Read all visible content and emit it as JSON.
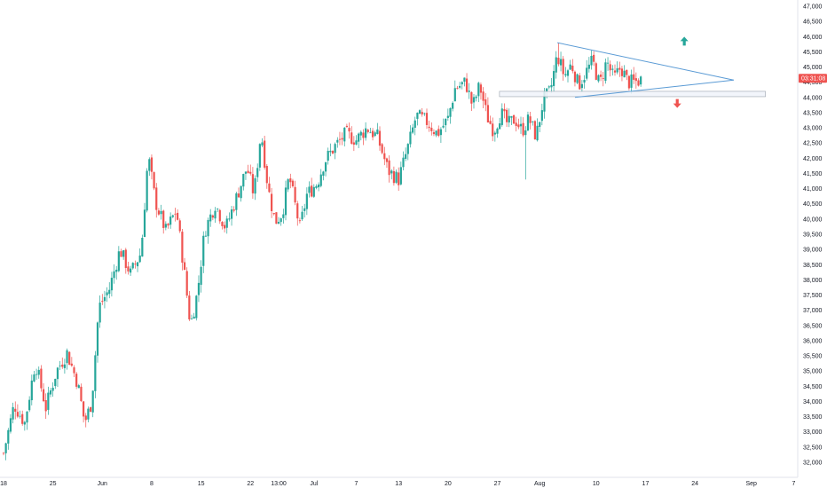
{
  "chart_data": {
    "type": "candlestick",
    "colors": {
      "up": "#26a69a",
      "down": "#ef5350",
      "pattern": "#5b9bd5",
      "zone_fill": "#f0f3fa",
      "zone_stroke": "#9aa1ac",
      "badge": "#ef5350",
      "up_arrow": "#26a69a",
      "down_arrow": "#ef5350"
    },
    "ylim": [
      31800,
      47100
    ],
    "y_ticks": [
      "47,000",
      "46,500",
      "46,000",
      "45,500",
      "45,000",
      "44,500",
      "44,000",
      "43,500",
      "43,000",
      "42,500",
      "42,000",
      "41,500",
      "41,000",
      "40,500",
      "40,000",
      "39,500",
      "39,000",
      "38,500",
      "38,000",
      "37,500",
      "37,000",
      "36,500",
      "36,000",
      "35,500",
      "35,000",
      "34,500",
      "34,000",
      "33,500",
      "33,000",
      "32,500",
      "32,000"
    ],
    "x_ticks": [
      {
        "label": "18",
        "day": 0
      },
      {
        "label": "25",
        "day": 7
      },
      {
        "label": "Jun",
        "day": 14
      },
      {
        "label": "8",
        "day": 21
      },
      {
        "label": "15",
        "day": 28
      },
      {
        "label": "22",
        "day": 35
      },
      {
        "label": "13:00",
        "day": 39
      },
      {
        "label": "Jul",
        "day": 44
      },
      {
        "label": "7",
        "day": 50
      },
      {
        "label": "13",
        "day": 56
      },
      {
        "label": "20",
        "day": 63
      },
      {
        "label": "27",
        "day": 70
      },
      {
        "label": "Aug",
        "day": 76
      },
      {
        "label": "10",
        "day": 84
      },
      {
        "label": "17",
        "day": 91
      },
      {
        "label": "24",
        "day": 98
      },
      {
        "label": "Sep",
        "day": 106
      },
      {
        "label": "7",
        "day": 112
      }
    ],
    "close_path": [
      [
        0,
        32300
      ],
      [
        1.5,
        33900
      ],
      [
        3,
        33300
      ],
      [
        4.5,
        35300
      ],
      [
        6,
        33800
      ],
      [
        7.5,
        35000
      ],
      [
        9,
        35600
      ],
      [
        10.5,
        34600
      ],
      [
        11.5,
        33300
      ],
      [
        12.5,
        34000
      ],
      [
        13.5,
        37100
      ],
      [
        15,
        37700
      ],
      [
        16.5,
        39000
      ],
      [
        18,
        38200
      ],
      [
        19.5,
        38900
      ],
      [
        20.5,
        42100
      ],
      [
        21.5,
        40600
      ],
      [
        23,
        39600
      ],
      [
        24.5,
        40300
      ],
      [
        25.5,
        38500
      ],
      [
        26.5,
        36500
      ],
      [
        27.5,
        37600
      ],
      [
        28.5,
        39600
      ],
      [
        30,
        40500
      ],
      [
        31.5,
        39700
      ],
      [
        33,
        40700
      ],
      [
        34.5,
        41700
      ],
      [
        35.5,
        40800
      ],
      [
        36.5,
        42900
      ],
      [
        37.5,
        41000
      ],
      [
        38.5,
        39900
      ],
      [
        39.5,
        40200
      ],
      [
        40.5,
        41400
      ],
      [
        42,
        39700
      ],
      [
        43,
        40800
      ],
      [
        44.5,
        41200
      ],
      [
        45.5,
        41900
      ],
      [
        47,
        42400
      ],
      [
        48.5,
        42800
      ],
      [
        50,
        42600
      ],
      [
        51.5,
        43000
      ],
      [
        53,
        42700
      ],
      [
        54.5,
        41600
      ],
      [
        56,
        41300
      ],
      [
        57.5,
        42500
      ],
      [
        58.5,
        43400
      ],
      [
        60,
        43200
      ],
      [
        61.5,
        42800
      ],
      [
        63,
        43300
      ],
      [
        64,
        44300
      ],
      [
        65.5,
        44500
      ],
      [
        66.5,
        43700
      ],
      [
        67.5,
        44400
      ],
      [
        68.5,
        43400
      ],
      [
        69.5,
        42900
      ],
      [
        70.5,
        43500
      ],
      [
        71.5,
        43100
      ],
      [
        72.5,
        43300
      ],
      [
        73.5,
        42900
      ],
      [
        74.5,
        43300
      ],
      [
        75.5,
        42700
      ],
      [
        76.5,
        43900
      ],
      [
        77.5,
        44200
      ],
      [
        78.5,
        45400
      ],
      [
        79.5,
        44700
      ],
      [
        80.5,
        45100
      ],
      [
        81.5,
        44400
      ],
      [
        82.5,
        44800
      ],
      [
        83.5,
        45200
      ],
      [
        84.5,
        44400
      ],
      [
        85.5,
        45200
      ],
      [
        86.5,
        44600
      ],
      [
        87.5,
        45000
      ],
      [
        88.5,
        44500
      ],
      [
        89.5,
        44500
      ],
      [
        90.5,
        44600
      ]
    ],
    "extreme_wicks": [
      {
        "day": 74,
        "low": 41300
      },
      {
        "day": 78.5,
        "high": 45800
      }
    ],
    "last_price": "03:31:08",
    "zone": {
      "from_day": 70.3,
      "to_day": 108,
      "top": 44200,
      "bottom": 44050
    },
    "triangle": {
      "upper": [
        [
          78.5,
          45800
        ],
        [
          103.5,
          44570
        ]
      ],
      "lower": [
        [
          81,
          44000
        ],
        [
          103.5,
          44570
        ]
      ]
    },
    "arrows": [
      {
        "direction": "up",
        "day": 96.5,
        "price": 45850
      },
      {
        "direction": "down",
        "day": 95.5,
        "price": 43800
      }
    ]
  }
}
